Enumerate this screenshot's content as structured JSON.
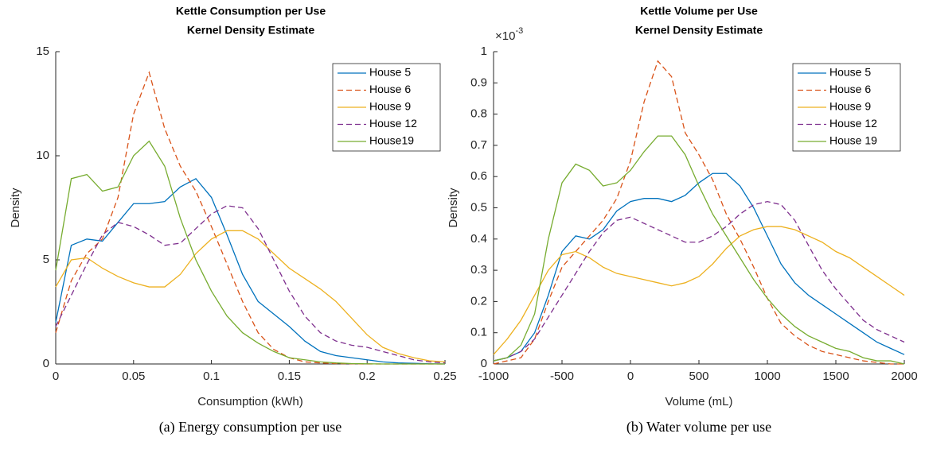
{
  "chart_data": [
    {
      "type": "line",
      "title": "Kettle Consumption per Use",
      "subtitle": "Kernel Density Estimate",
      "xlabel": "Consumption (kWh)",
      "ylabel": "Density",
      "caption": "(a) Energy consumption per use",
      "x": [
        0,
        0.01,
        0.02,
        0.03,
        0.04,
        0.05,
        0.06,
        0.07,
        0.08,
        0.09,
        0.1,
        0.11,
        0.12,
        0.13,
        0.14,
        0.15,
        0.16,
        0.17,
        0.18,
        0.19,
        0.2,
        0.21,
        0.22,
        0.23,
        0.24,
        0.25
      ],
      "xlim": [
        0,
        0.25
      ],
      "xticks": [
        0,
        0.05,
        0.1,
        0.15,
        0.2,
        0.25
      ],
      "ylim": [
        0,
        15
      ],
      "yticks": [
        0,
        5,
        10,
        15
      ],
      "grid": false,
      "legend": "upper right",
      "series": [
        {
          "name": "House 5",
          "color": "#0072BD",
          "line_style": "solid",
          "values": [
            2.0,
            5.7,
            6.0,
            5.9,
            6.8,
            7.7,
            7.7,
            7.8,
            8.5,
            8.9,
            8.0,
            6.2,
            4.3,
            3.0,
            2.4,
            1.8,
            1.1,
            0.6,
            0.4,
            0.3,
            0.2,
            0.1,
            0.05,
            0.03,
            0.01,
            0
          ]
        },
        {
          "name": "House 6",
          "color": "#D95319",
          "line_style": "dashed",
          "values": [
            1.5,
            4.0,
            5.3,
            6.0,
            8.0,
            12.0,
            14.0,
            11.3,
            9.5,
            8.3,
            6.6,
            4.8,
            3.0,
            1.5,
            0.7,
            0.3,
            0.1,
            0.05,
            0.02,
            0.01,
            0,
            0,
            0,
            0,
            0,
            0
          ]
        },
        {
          "name": "House 9",
          "color": "#EDB120",
          "line_style": "solid",
          "values": [
            3.7,
            5.0,
            5.1,
            4.6,
            4.2,
            3.9,
            3.7,
            3.7,
            4.3,
            5.3,
            6.0,
            6.4,
            6.4,
            6.0,
            5.3,
            4.6,
            4.1,
            3.6,
            3.0,
            2.2,
            1.4,
            0.8,
            0.5,
            0.3,
            0.15,
            0.1
          ]
        },
        {
          "name": "House 12",
          "color": "#7E2F8E",
          "line_style": "dashed",
          "values": [
            1.8,
            3.3,
            4.8,
            6.2,
            6.8,
            6.6,
            6.2,
            5.7,
            5.8,
            6.5,
            7.2,
            7.6,
            7.5,
            6.5,
            5.0,
            3.5,
            2.3,
            1.5,
            1.1,
            0.9,
            0.8,
            0.6,
            0.4,
            0.2,
            0.1,
            0.05
          ]
        },
        {
          "name": "House19",
          "color": "#77AC30",
          "line_style": "solid",
          "values": [
            4.5,
            8.9,
            9.1,
            8.3,
            8.5,
            10.0,
            10.7,
            9.5,
            7.0,
            5.0,
            3.5,
            2.3,
            1.5,
            1.0,
            0.6,
            0.3,
            0.2,
            0.1,
            0.05,
            0.02,
            0.01,
            0,
            0,
            0,
            0,
            0
          ]
        }
      ]
    },
    {
      "type": "line",
      "title": "Kettle Volume per Use",
      "subtitle": "Kernel Density Estimate",
      "xlabel": "Volume (mL)",
      "ylabel": "Density",
      "caption": "(b) Water volume per use",
      "y_multiplier": {
        "base": "×10",
        "exponent": "-3"
      },
      "x": [
        -1000,
        -900,
        -800,
        -700,
        -600,
        -500,
        -400,
        -300,
        -200,
        -100,
        0,
        100,
        200,
        300,
        400,
        500,
        600,
        700,
        800,
        900,
        1000,
        1100,
        1200,
        1300,
        1400,
        1500,
        1600,
        1700,
        1800,
        1900,
        2000
      ],
      "xlim": [
        -1000,
        2000
      ],
      "xticks": [
        -1000,
        -500,
        0,
        500,
        1000,
        1500,
        2000
      ],
      "ylim": [
        0,
        1
      ],
      "yticks": [
        0,
        0.1,
        0.2,
        0.3,
        0.4,
        0.5,
        0.6,
        0.7,
        0.8,
        0.9,
        1
      ],
      "grid": false,
      "legend": "upper right",
      "series": [
        {
          "name": "House 5",
          "color": "#0072BD",
          "line_style": "solid",
          "values": [
            0.01,
            0.02,
            0.04,
            0.1,
            0.22,
            0.36,
            0.41,
            0.4,
            0.43,
            0.49,
            0.52,
            0.53,
            0.53,
            0.52,
            0.54,
            0.58,
            0.61,
            0.61,
            0.57,
            0.5,
            0.41,
            0.32,
            0.26,
            0.22,
            0.19,
            0.16,
            0.13,
            0.1,
            0.07,
            0.05,
            0.03
          ]
        },
        {
          "name": "House 6",
          "color": "#D95319",
          "line_style": "dashed",
          "values": [
            0,
            0.01,
            0.02,
            0.08,
            0.2,
            0.31,
            0.36,
            0.41,
            0.46,
            0.53,
            0.65,
            0.84,
            0.97,
            0.92,
            0.74,
            0.67,
            0.59,
            0.48,
            0.4,
            0.31,
            0.21,
            0.13,
            0.09,
            0.06,
            0.04,
            0.03,
            0.02,
            0.01,
            0.005,
            0,
            0
          ]
        },
        {
          "name": "House 9",
          "color": "#EDB120",
          "line_style": "solid",
          "values": [
            0.03,
            0.08,
            0.14,
            0.22,
            0.3,
            0.35,
            0.36,
            0.34,
            0.31,
            0.29,
            0.28,
            0.27,
            0.26,
            0.25,
            0.26,
            0.28,
            0.32,
            0.37,
            0.41,
            0.43,
            0.44,
            0.44,
            0.43,
            0.41,
            0.39,
            0.36,
            0.34,
            0.31,
            0.28,
            0.25,
            0.22
          ]
        },
        {
          "name": "House 12",
          "color": "#7E2F8E",
          "line_style": "dashed",
          "values": [
            0.01,
            0.02,
            0.04,
            0.08,
            0.15,
            0.22,
            0.29,
            0.36,
            0.42,
            0.46,
            0.47,
            0.45,
            0.43,
            0.41,
            0.39,
            0.39,
            0.41,
            0.44,
            0.48,
            0.51,
            0.52,
            0.51,
            0.46,
            0.38,
            0.3,
            0.24,
            0.19,
            0.14,
            0.11,
            0.09,
            0.07
          ]
        },
        {
          "name": "House 19",
          "color": "#77AC30",
          "line_style": "solid",
          "values": [
            0.01,
            0.02,
            0.06,
            0.16,
            0.4,
            0.58,
            0.64,
            0.62,
            0.57,
            0.58,
            0.62,
            0.68,
            0.73,
            0.73,
            0.67,
            0.57,
            0.48,
            0.41,
            0.34,
            0.27,
            0.21,
            0.16,
            0.12,
            0.09,
            0.07,
            0.05,
            0.04,
            0.02,
            0.01,
            0.01,
            0
          ]
        }
      ]
    }
  ]
}
